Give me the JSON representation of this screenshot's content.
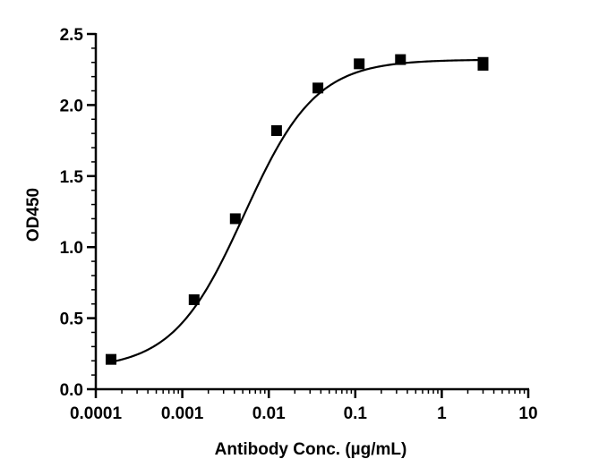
{
  "chart_data": {
    "type": "scatter",
    "title": "",
    "xlabel": "Antibody Conc. (µg/mL)",
    "ylabel": "OD450",
    "xscale": "log",
    "xlim": [
      0.0001,
      10
    ],
    "ylim": [
      0,
      2.5
    ],
    "x_ticks": [
      {
        "value": 0.0001,
        "label": "0.0001"
      },
      {
        "value": 0.001,
        "label": "0.001"
      },
      {
        "value": 0.01,
        "label": "0.01"
      },
      {
        "value": 0.1,
        "label": "0.1"
      },
      {
        "value": 1,
        "label": "1"
      },
      {
        "value": 10,
        "label": "10"
      }
    ],
    "y_ticks": [
      {
        "value": 0,
        "label": "0.0"
      },
      {
        "value": 0.5,
        "label": "0.5"
      },
      {
        "value": 1,
        "label": "1.0"
      },
      {
        "value": 1.5,
        "label": "1.5"
      },
      {
        "value": 2,
        "label": "2.0"
      },
      {
        "value": 2.5,
        "label": "2.5"
      }
    ],
    "y_minor_step": 0.1,
    "grid": false,
    "legend": "none",
    "series": [
      {
        "marker": "square",
        "color": "#000000",
        "points": [
          {
            "x": 0.00015,
            "y": 0.21
          },
          {
            "x": 0.00137,
            "y": 0.63
          },
          {
            "x": 0.0041,
            "y": 1.2
          },
          {
            "x": 0.0123,
            "y": 1.82
          },
          {
            "x": 0.037,
            "y": 2.12
          },
          {
            "x": 0.111,
            "y": 2.29
          },
          {
            "x": 0.333,
            "y": 2.32
          },
          {
            "x": 3.0,
            "y": 2.28
          },
          {
            "x": 3.0,
            "y": 2.3
          }
        ]
      }
    ],
    "fit": {
      "model": "4PL",
      "bottom": 0.14,
      "top": 2.32,
      "ec50": 0.0052,
      "hill": 1.05,
      "color": "#000000"
    }
  }
}
